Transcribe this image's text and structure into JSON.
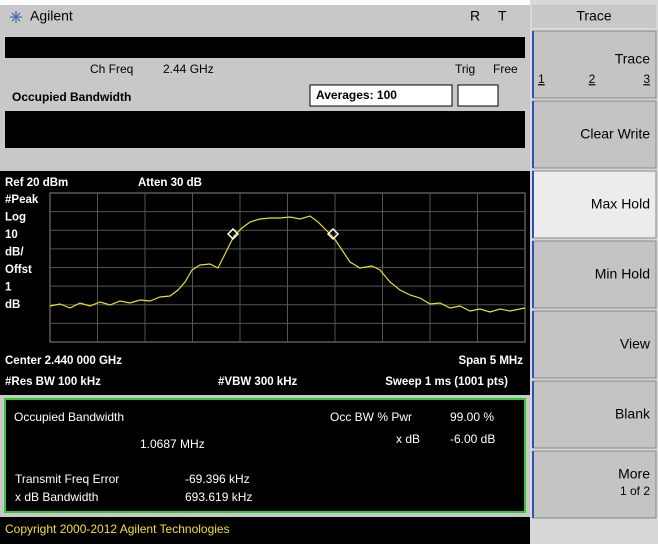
{
  "header": {
    "brand": "Agilent",
    "r": "R",
    "t": "T"
  },
  "info": {
    "ch_freq_label": "Ch Freq",
    "ch_freq": "2.44 GHz",
    "trig_label": "Trig",
    "trig": "Free",
    "measurement": "Occupied Bandwidth",
    "averages": "Averages: 100"
  },
  "graph": {
    "ref": "Ref 20 dBm",
    "atten": "Atten 30 dB",
    "scale": [
      "#Peak",
      "Log",
      "10",
      "dB/",
      "Offst",
      "1",
      "dB"
    ],
    "center": "Center 2.440 000 GHz",
    "span": "Span 5 MHz",
    "res_bw": "#Res BW 100 kHz",
    "vbw": "#VBW 300 kHz",
    "sweep": "Sweep 1 ms (1001 pts)"
  },
  "results": {
    "title": "Occupied Bandwidth",
    "value": "1.0687 MHz",
    "occ_bw_label": "Occ BW % Pwr",
    "occ_bw": "99.00 %",
    "xdb_label": "x dB",
    "xdb": "-6.00 dB",
    "tfe_label": "Transmit Freq Error",
    "tfe": "-69.396 kHz",
    "xdb_bw_label": "x dB Bandwidth",
    "xdb_bw": "693.619 kHz"
  },
  "softkeys": {
    "title": "Trace",
    "trace": {
      "label": "Trace",
      "options": [
        "1",
        "2",
        "3"
      ]
    },
    "keys": [
      "Clear Write",
      "Max Hold",
      "Min Hold",
      "View",
      "Blank"
    ],
    "more": {
      "label": "More",
      "sub": "1 of 2"
    }
  },
  "footer": "Copyright 2000-2012 Agilent Technologies"
}
